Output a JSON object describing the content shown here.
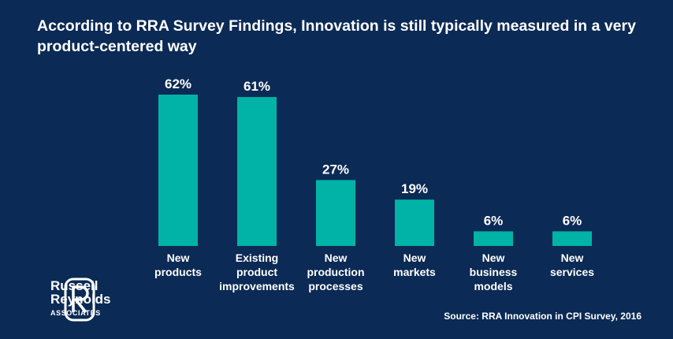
{
  "title": "According to RRA Survey Findings, Innovation is still typically measured in a very product-centered way",
  "source": "Source: RRA Innovation in CPI Survey, 2016",
  "logo": {
    "line1": "Russell",
    "line2": "Reynolds",
    "line3": "ASSOCIATES"
  },
  "colors": {
    "background": "#0b2a55",
    "bar": "#00b3a6",
    "text": "#ffffff"
  },
  "chart_data": {
    "type": "bar",
    "title": "According to RRA Survey Findings, Innovation is still typically measured in a very product-centered way",
    "categories": [
      [
        "New",
        "products"
      ],
      [
        "Existing",
        "product",
        "improvements"
      ],
      [
        "New",
        "production",
        "processes"
      ],
      [
        "New",
        "markets"
      ],
      [
        "New",
        "business",
        "models"
      ],
      [
        "New",
        "services"
      ]
    ],
    "values": [
      62,
      61,
      27,
      19,
      6,
      6
    ],
    "value_labels": [
      "62%",
      "61%",
      "27%",
      "19%",
      "6%",
      "6%"
    ],
    "unit": "%",
    "ylim": [
      0,
      62
    ],
    "grid": false,
    "legend": "none"
  }
}
